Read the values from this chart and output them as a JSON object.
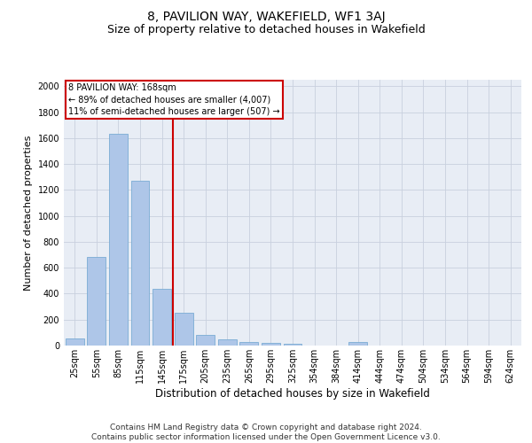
{
  "title1": "8, PAVILION WAY, WAKEFIELD, WF1 3AJ",
  "title2": "Size of property relative to detached houses in Wakefield",
  "xlabel": "Distribution of detached houses by size in Wakefield",
  "ylabel": "Number of detached properties",
  "footnote": "Contains HM Land Registry data © Crown copyright and database right 2024.\nContains public sector information licensed under the Open Government Licence v3.0.",
  "categories": [
    "25sqm",
    "55sqm",
    "85sqm",
    "115sqm",
    "145sqm",
    "175sqm",
    "205sqm",
    "235sqm",
    "265sqm",
    "295sqm",
    "325sqm",
    "354sqm",
    "384sqm",
    "414sqm",
    "444sqm",
    "474sqm",
    "504sqm",
    "534sqm",
    "564sqm",
    "594sqm",
    "624sqm"
  ],
  "values": [
    55,
    680,
    1630,
    1270,
    440,
    250,
    80,
    50,
    30,
    20,
    15,
    0,
    0,
    30,
    0,
    0,
    0,
    0,
    0,
    0,
    0
  ],
  "bar_color": "#aec6e8",
  "bar_edge_color": "#7aacd4",
  "vline_color": "#cc0000",
  "annotation_text": "8 PAVILION WAY: 168sqm\n← 89% of detached houses are smaller (4,007)\n11% of semi-detached houses are larger (507) →",
  "annotation_box_color": "#cc0000",
  "ylim": [
    0,
    2050
  ],
  "yticks": [
    0,
    200,
    400,
    600,
    800,
    1000,
    1200,
    1400,
    1600,
    1800,
    2000
  ],
  "grid_color": "#c8d0de",
  "bg_color": "#e8edf5",
  "title1_fontsize": 10,
  "title2_fontsize": 9,
  "xlabel_fontsize": 8.5,
  "ylabel_fontsize": 8,
  "footnote_fontsize": 6.5,
  "tick_fontsize": 7
}
